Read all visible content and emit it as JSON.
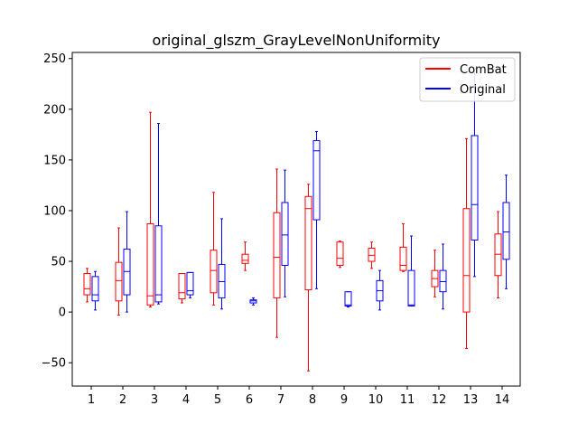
{
  "chart_data": {
    "type": "boxplot",
    "title": "original_glszm_GrayLevelNonUniformity",
    "xlabel": "",
    "ylabel": "",
    "categories": [
      "1",
      "2",
      "3",
      "4",
      "5",
      "6",
      "7",
      "8",
      "9",
      "10",
      "11",
      "12",
      "13",
      "14"
    ],
    "ylim": [
      -73,
      256
    ],
    "yticks": [
      -50,
      0,
      50,
      100,
      150,
      200,
      250
    ],
    "legend": {
      "placement": "top-right"
    },
    "grid": false,
    "series": [
      {
        "name": "ComBat",
        "color": "#ff0000",
        "boxes": [
          {
            "category": "1",
            "min": 10,
            "q1": 17,
            "median": 23,
            "q3": 38,
            "max": 43
          },
          {
            "category": "2",
            "min": -3,
            "q1": 11,
            "median": 31,
            "q3": 49,
            "max": 83
          },
          {
            "category": "3",
            "min": 5,
            "q1": 7,
            "median": 16,
            "q3": 87,
            "max": 197
          },
          {
            "category": "4",
            "min": 9,
            "q1": 13,
            "median": 19,
            "q3": 38,
            "max": 38
          },
          {
            "category": "5",
            "min": 7,
            "q1": 19,
            "median": 41,
            "q3": 61,
            "max": 118
          },
          {
            "category": "6",
            "min": 41,
            "q1": 48,
            "median": 51,
            "q3": 57,
            "max": 69
          },
          {
            "category": "7",
            "min": -25,
            "q1": 14,
            "median": 54,
            "q3": 98,
            "max": 141
          },
          {
            "category": "8",
            "min": -58,
            "q1": 22,
            "median": 102,
            "q3": 114,
            "max": 126
          },
          {
            "category": "9",
            "min": 44,
            "q1": 46,
            "median": 53,
            "q3": 69,
            "max": 70
          },
          {
            "category": "10",
            "min": 43,
            "q1": 50,
            "median": 56,
            "q3": 63,
            "max": 69
          },
          {
            "category": "11",
            "min": 40,
            "q1": 41,
            "median": 46,
            "q3": 64,
            "max": 87
          },
          {
            "category": "12",
            "min": 15,
            "q1": 25,
            "median": 33,
            "q3": 41,
            "max": 61
          },
          {
            "category": "13",
            "min": -36,
            "q1": 0,
            "median": 36,
            "q3": 102,
            "max": 171
          },
          {
            "category": "14",
            "min": 14,
            "q1": 36,
            "median": 57,
            "q3": 77,
            "max": 99
          }
        ]
      },
      {
        "name": "Original",
        "color": "#0000ff",
        "boxes": [
          {
            "category": "1",
            "min": 2,
            "q1": 11,
            "median": 17,
            "q3": 35,
            "max": 40
          },
          {
            "category": "2",
            "min": 0,
            "q1": 17,
            "median": 40,
            "q3": 62,
            "max": 99
          },
          {
            "category": "3",
            "min": 8,
            "q1": 10,
            "median": 17,
            "q3": 85,
            "max": 186
          },
          {
            "category": "4",
            "min": 14,
            "q1": 17,
            "median": 21,
            "q3": 39,
            "max": 39
          },
          {
            "category": "5",
            "min": 3,
            "q1": 14,
            "median": 30,
            "q3": 47,
            "max": 92
          },
          {
            "category": "6",
            "min": 7,
            "q1": 9,
            "median": 11,
            "q3": 12,
            "max": 14
          },
          {
            "category": "7",
            "min": 15,
            "q1": 46,
            "median": 76,
            "q3": 108,
            "max": 140
          },
          {
            "category": "8",
            "min": 23,
            "q1": 91,
            "median": 159,
            "q3": 169,
            "max": 178
          },
          {
            "category": "9",
            "min": 5,
            "q1": 6,
            "median": 7,
            "q3": 20,
            "max": 20
          },
          {
            "category": "10",
            "min": 2,
            "q1": 11,
            "median": 21,
            "q3": 31,
            "max": 41
          },
          {
            "category": "11",
            "min": 6,
            "q1": 6,
            "median": 7,
            "q3": 41,
            "max": 75
          },
          {
            "category": "12",
            "min": 3,
            "q1": 20,
            "median": 30,
            "q3": 41,
            "max": 67
          },
          {
            "category": "13",
            "min": 35,
            "q1": 71,
            "median": 106,
            "q3": 174,
            "max": 240
          },
          {
            "category": "14",
            "min": 23,
            "q1": 52,
            "median": 79,
            "q3": 108,
            "max": 135
          }
        ]
      }
    ]
  }
}
